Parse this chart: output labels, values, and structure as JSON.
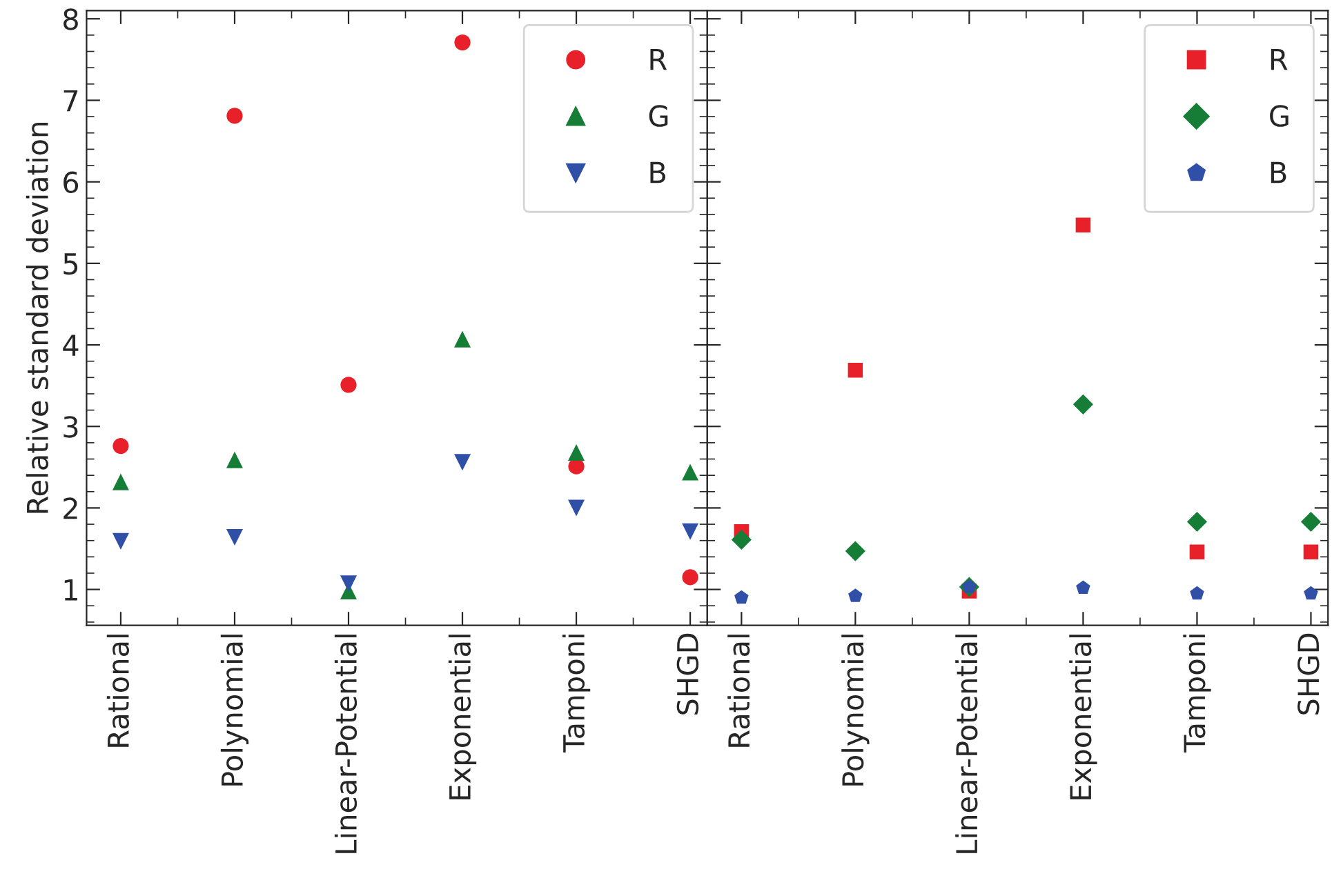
{
  "chart_data": [
    {
      "type": "scatter",
      "ylabel": "Relative standard deviation",
      "categories": [
        "Rational",
        "Polynomial",
        "Linear-Potential",
        "Exponential",
        "Tamponi",
        "SHGD"
      ],
      "series": [
        {
          "name": "R",
          "color": "#e8202a",
          "marker": "circle",
          "values": [
            2.76,
            6.81,
            3.51,
            7.71,
            2.51,
            1.15
          ]
        },
        {
          "name": "G",
          "color": "#167d37",
          "marker": "triangle",
          "values": [
            2.32,
            2.59,
            0.98,
            4.07,
            2.68,
            2.44
          ]
        },
        {
          "name": "B",
          "color": "#3050a8",
          "marker": "triangle_down",
          "values": [
            1.59,
            1.64,
            1.07,
            2.56,
            2.0,
            1.71
          ]
        }
      ],
      "ylim": [
        0.56,
        8.1
      ],
      "yticks": [
        1,
        2,
        3,
        4,
        5,
        6,
        7,
        8
      ],
      "legend": "top right",
      "grid": false
    },
    {
      "type": "scatter",
      "categories": [
        "Rational",
        "Polynomial",
        "Linear-Potential",
        "Exponential",
        "Tamponi",
        "SHGD"
      ],
      "series": [
        {
          "name": "R",
          "color": "#e8202a",
          "marker": "square",
          "values": [
            1.71,
            3.69,
            0.98,
            5.47,
            1.46,
            1.46
          ]
        },
        {
          "name": "G",
          "color": "#167d37",
          "marker": "diamond",
          "values": [
            1.61,
            1.47,
            1.03,
            3.27,
            1.83,
            1.83
          ]
        },
        {
          "name": "B",
          "color": "#3050a8",
          "values": [
            0.9,
            0.92,
            1.03,
            1.02,
            0.95,
            0.95
          ]
        }
      ],
      "ylim": [
        0.56,
        8.1
      ],
      "yticks": [
        1,
        2,
        3,
        4,
        5,
        6,
        7,
        8
      ],
      "legend": "top right",
      "grid": false,
      "tick_labels": "x"
    }
  ]
}
